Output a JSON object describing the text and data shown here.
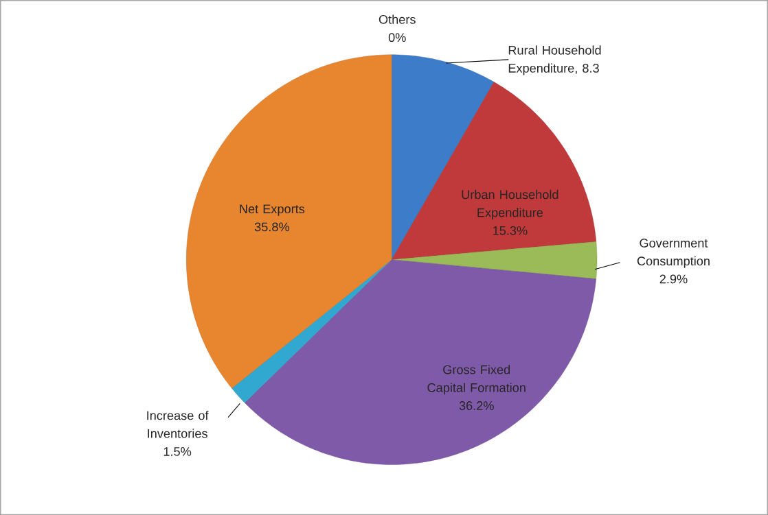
{
  "chart_data": {
    "type": "pie",
    "categories": [
      "Others",
      "Rural Household Expenditure",
      "Urban Household Expenditure",
      "Government Consumption",
      "Gross Fixed Capital Formation",
      "Increase of Inventories",
      "Net Exports"
    ],
    "values": [
      0,
      8.3,
      15.3,
      2.9,
      36.2,
      1.5,
      35.8
    ],
    "colors": [
      "#4bacc6",
      "#3d7cc9",
      "#c0393b",
      "#9bbb59",
      "#7f5aa8",
      "#31a8d0",
      "#e8852f"
    ],
    "value_labels": [
      "0%",
      ", 8.3",
      "15.3%",
      "2.9%",
      "36.2%",
      "1.5%",
      "35.8%"
    ]
  }
}
